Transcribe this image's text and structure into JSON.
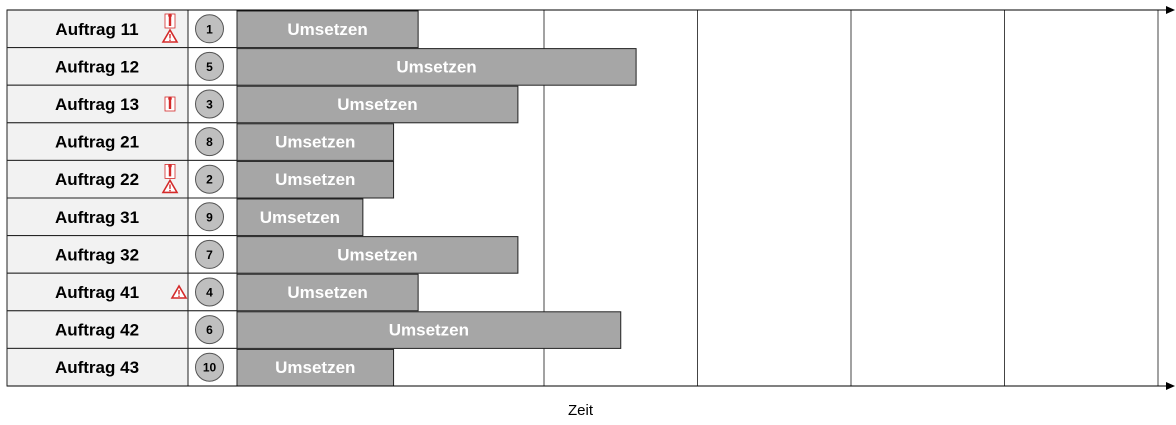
{
  "chart_data": {
    "type": "gantt",
    "xlabel": "Zeit",
    "time_max": 6,
    "bar_label": "Umsetzen",
    "rows": [
      {
        "label": "Auftrag 11",
        "priority": "1",
        "icons": [
          "person-priority-icon",
          "warning-icon"
        ],
        "start": 0,
        "end": 1.18
      },
      {
        "label": "Auftrag 12",
        "priority": "5",
        "icons": [],
        "start": 0,
        "end": 2.6
      },
      {
        "label": "Auftrag 13",
        "priority": "3",
        "icons": [
          "person-priority-icon"
        ],
        "start": 0,
        "end": 1.83
      },
      {
        "label": "Auftrag 21",
        "priority": "8",
        "icons": [],
        "start": 0,
        "end": 1.02
      },
      {
        "label": "Auftrag 22",
        "priority": "2",
        "icons": [
          "person-priority-icon",
          "warning-icon"
        ],
        "start": 0,
        "end": 1.02
      },
      {
        "label": "Auftrag 31",
        "priority": "9",
        "icons": [],
        "start": 0,
        "end": 0.82
      },
      {
        "label": "Auftrag 32",
        "priority": "7",
        "icons": [],
        "start": 0,
        "end": 1.83
      },
      {
        "label": "Auftrag 41",
        "priority": "4",
        "icons": [
          "warning-icon"
        ],
        "start": 0,
        "end": 1.18
      },
      {
        "label": "Auftrag 42",
        "priority": "6",
        "icons": [],
        "start": 0,
        "end": 2.5
      },
      {
        "label": "Auftrag 43",
        "priority": "10",
        "icons": [],
        "start": 0,
        "end": 1.02
      }
    ],
    "colors": {
      "bar": "#a6a6a6",
      "label_bg": "#f2f2f2",
      "priority_circle": "#bfbfbf",
      "icon_red": "#d42a2a"
    }
  }
}
